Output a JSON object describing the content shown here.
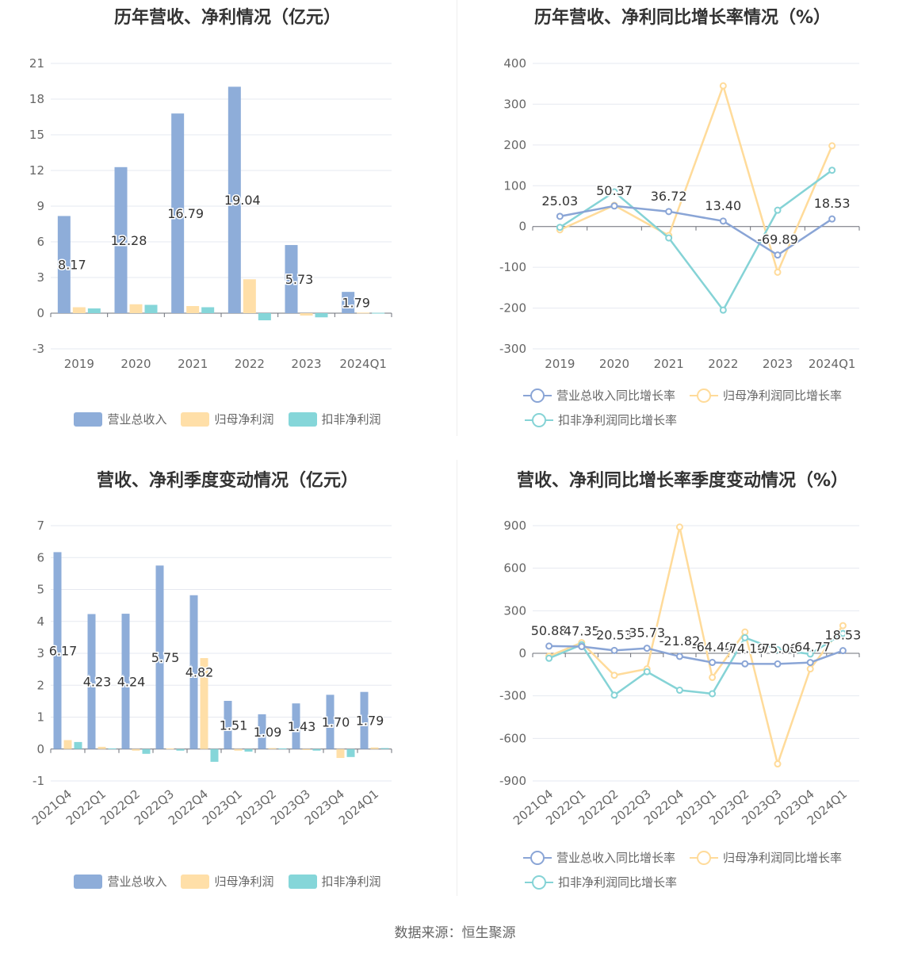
{
  "footer": {
    "source": "数据来源：恒生聚源"
  },
  "colors": {
    "revenue": "#8eadd9",
    "parent": "#ffdfa8",
    "deducted": "#85d6d9",
    "revenue_line": "#8aa5d6",
    "parent_line": "#ffdb9a",
    "deducted_line": "#85d3d6"
  },
  "chart_data": [
    {
      "type": "bar",
      "title": "历年营收、净利情况（亿元）",
      "categories": [
        "2019",
        "2020",
        "2021",
        "2022",
        "2023",
        "2024Q1"
      ],
      "ylim": [
        -3,
        21
      ],
      "yticks": [
        -3,
        0,
        3,
        6,
        9,
        12,
        15,
        18,
        21
      ],
      "series": [
        {
          "name": "营业总收入",
          "values": [
            8.17,
            12.28,
            16.79,
            19.04,
            5.73,
            1.79
          ],
          "labels": [
            "8.17",
            "12.28",
            "16.79",
            "19.04",
            "5.73",
            "1.79"
          ]
        },
        {
          "name": "归母净利润",
          "values": [
            0.5,
            0.75,
            0.6,
            2.85,
            -0.2,
            0.05
          ]
        },
        {
          "name": "扣非净利润",
          "values": [
            0.4,
            0.7,
            0.5,
            -0.6,
            -0.35,
            0.03
          ]
        }
      ],
      "legend": "bottom"
    },
    {
      "type": "line",
      "title": "历年营收、净利同比增长率情况（%）",
      "categories": [
        "2019",
        "2020",
        "2021",
        "2022",
        "2023",
        "2024Q1"
      ],
      "ylim": [
        -300,
        400
      ],
      "yticks": [
        -300,
        -200,
        -100,
        0,
        100,
        200,
        300,
        400
      ],
      "series": [
        {
          "name": "营业总收入同比增长率",
          "values": [
            25.03,
            50.37,
            36.72,
            13.4,
            -69.89,
            18.53
          ],
          "labels": [
            "25.03",
            "50.37",
            "36.72",
            "13.40",
            "-69.89",
            "18.53"
          ]
        },
        {
          "name": "归母净利润同比增长率",
          "values": [
            -8,
            52,
            -22,
            345,
            -112,
            198
          ]
        },
        {
          "name": "扣非净利润同比增长率",
          "values": [
            -2,
            85,
            -28,
            -205,
            40,
            138
          ]
        }
      ],
      "legend": "bottom"
    },
    {
      "type": "bar",
      "title": "营收、净利季度变动情况（亿元）",
      "categories": [
        "2021Q4",
        "2022Q1",
        "2022Q2",
        "2022Q3",
        "2022Q4",
        "2023Q1",
        "2023Q2",
        "2023Q3",
        "2023Q4",
        "2024Q1"
      ],
      "ylim": [
        -1,
        7
      ],
      "yticks": [
        -1,
        0,
        1,
        2,
        3,
        4,
        5,
        6,
        7
      ],
      "series": [
        {
          "name": "营业总收入",
          "values": [
            6.17,
            4.23,
            4.24,
            5.75,
            4.82,
            1.51,
            1.09,
            1.43,
            1.7,
            1.79
          ],
          "labels": [
            "6.17",
            "4.23",
            "4.24",
            "5.75",
            "4.82",
            "1.51",
            "1.09",
            "1.43",
            "1.70",
            "1.79"
          ]
        },
        {
          "name": "归母净利润",
          "values": [
            0.28,
            0.07,
            -0.05,
            0.02,
            2.85,
            -0.05,
            0.03,
            -0.03,
            -0.28,
            0.05
          ]
        },
        {
          "name": "扣非净利润",
          "values": [
            0.22,
            0.02,
            -0.15,
            -0.05,
            -0.4,
            -0.08,
            0.02,
            -0.05,
            -0.25,
            0.03
          ]
        }
      ],
      "legend": "bottom"
    },
    {
      "type": "line",
      "title": "营收、净利同比增长率季度变动情况（%）",
      "categories": [
        "2021Q4",
        "2022Q1",
        "2022Q2",
        "2022Q3",
        "2022Q4",
        "2023Q1",
        "2023Q2",
        "2023Q3",
        "2023Q4",
        "2024Q1"
      ],
      "ylim": [
        -900,
        900
      ],
      "yticks": [
        -900,
        -600,
        -300,
        0,
        300,
        600,
        900
      ],
      "series": [
        {
          "name": "营业总收入同比增长率",
          "values": [
            50.88,
            47.35,
            20.53,
            35.73,
            -21.82,
            -64.4,
            -74.19,
            -75.08,
            -64.77,
            18.53
          ],
          "labels": [
            "50.88",
            "47.35",
            "20.53",
            "35.73",
            "-21.82",
            "-64.40",
            "-74.19",
            "-75.08",
            "-64.77",
            "18.53"
          ]
        },
        {
          "name": "归母净利润同比增长率",
          "values": [
            -20,
            75,
            -155,
            -110,
            890,
            -170,
            150,
            -780,
            -110,
            195
          ]
        },
        {
          "name": "扣非净利润同比增长率",
          "values": [
            -35,
            60,
            -295,
            -130,
            -260,
            -285,
            110,
            25,
            -5,
            140
          ]
        }
      ],
      "legend": "bottom"
    }
  ]
}
